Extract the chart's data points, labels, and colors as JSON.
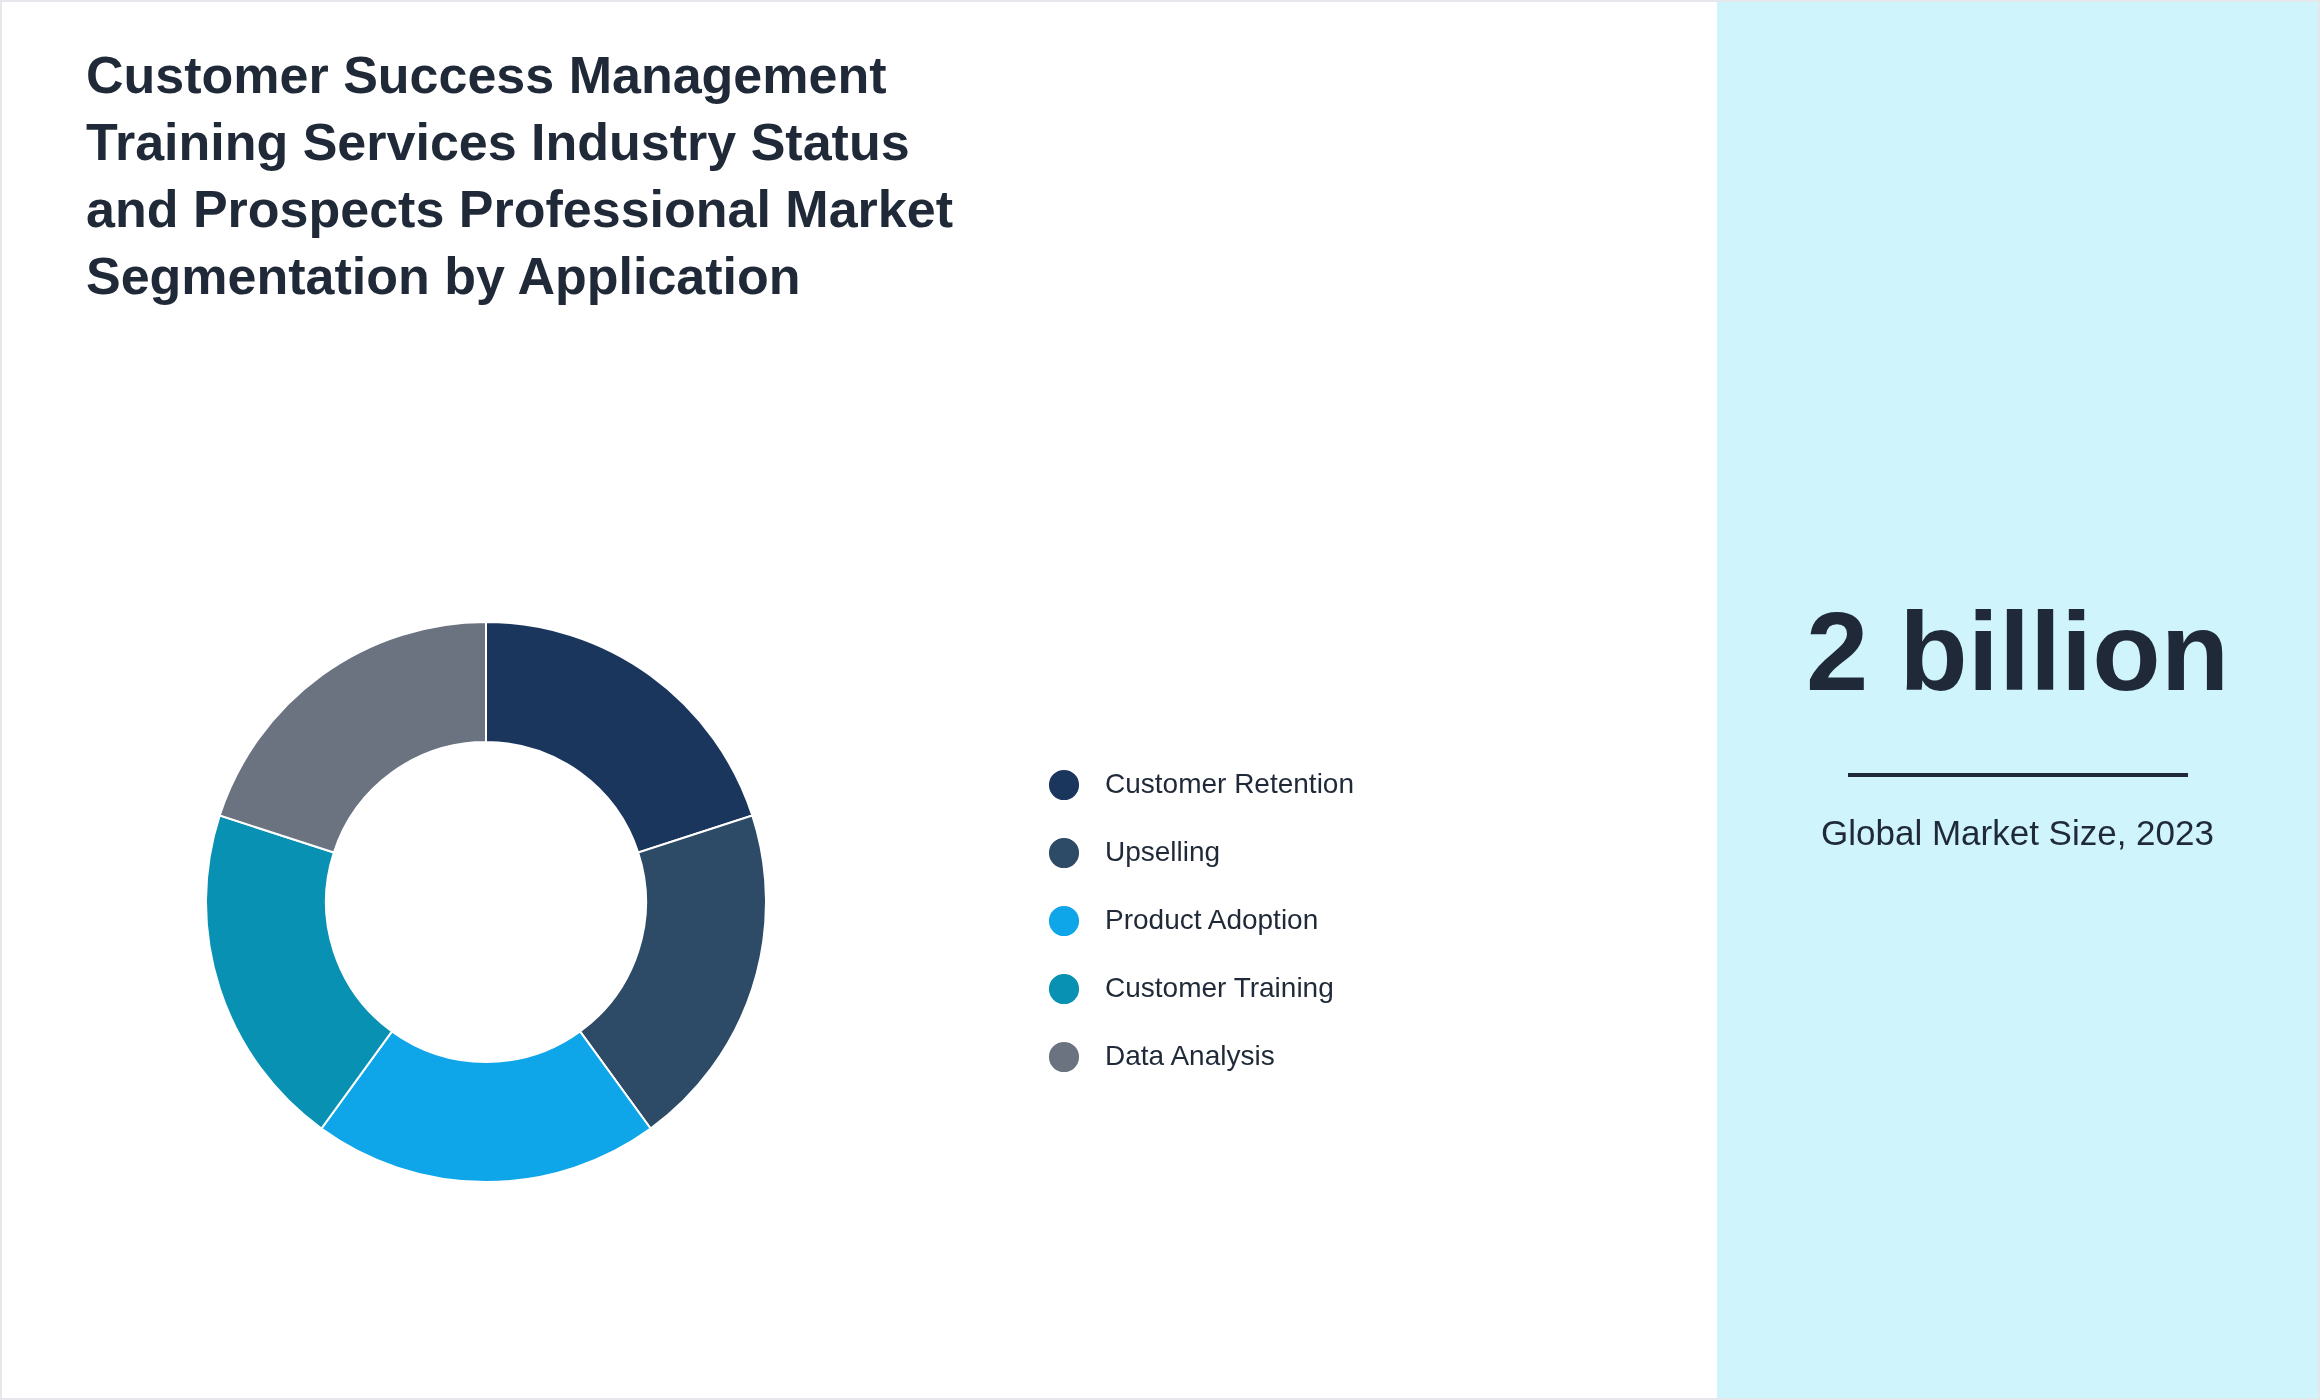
{
  "chart_data": [
    {
      "type": "donut",
      "title": "Customer Success Management Training Services Industry Status and Prospects Professional Market Segmentation by Application",
      "categories": [
        "Customer Retention",
        "Upselling",
        "Product Adoption",
        "Customer Training",
        "Data Analysis"
      ],
      "values": [
        20,
        20,
        20,
        20,
        20
      ],
      "colors": [
        "#1b365d",
        "#2d4a66",
        "#0ea5e9",
        "#0891b2",
        "#6b7280"
      ],
      "legend": "right"
    },
    {
      "type": "other",
      "title": "2 billion",
      "subtitle": "Global Market Size, 2023"
    }
  ]
}
